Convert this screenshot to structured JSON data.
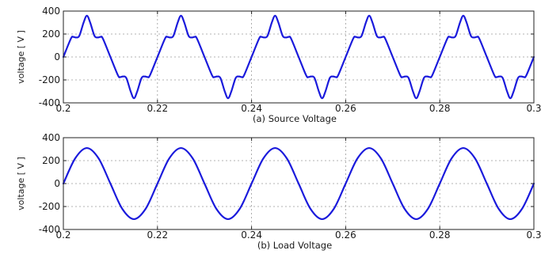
{
  "chart_data": [
    {
      "type": "line",
      "caption": "(a) Source Voltage",
      "ylabel": "voltage [ V ]",
      "xlabel": "",
      "xlim": [
        0.2,
        0.3
      ],
      "ylim": [
        -400,
        400
      ],
      "xticks": [
        0.2,
        0.22,
        0.24,
        0.26,
        0.28,
        0.3
      ],
      "xtick_labels": [
        "0.2",
        "0.22",
        "0.24",
        "0.26",
        "0.28",
        "0.3"
      ],
      "yticks": [
        -400,
        -200,
        0,
        200,
        400
      ],
      "ytick_labels": [
        "-400",
        "-200",
        "0",
        "200",
        "400"
      ],
      "grid": true,
      "series": [
        {
          "color": "#1a1adc",
          "x": [
            0.2,
            0.2016,
            0.2021,
            0.2027,
            0.2034,
            0.2043,
            0.205,
            0.2057,
            0.2066,
            0.2073,
            0.2079,
            0.2084,
            0.21,
            0.2116,
            0.2121,
            0.2127,
            0.2134,
            0.2143,
            0.215,
            0.2157,
            0.2166,
            0.2173,
            0.2179,
            0.2184,
            0.22,
            0.2216,
            0.2221,
            0.2227,
            0.2234,
            0.2243,
            0.225,
            0.2257,
            0.2266,
            0.2273,
            0.2279,
            0.2284,
            0.23,
            0.2316,
            0.2321,
            0.2327,
            0.2334,
            0.2343,
            0.235,
            0.2357,
            0.2366,
            0.2373,
            0.2379,
            0.2384,
            0.24,
            0.2416,
            0.2421,
            0.2427,
            0.2434,
            0.2443,
            0.245,
            0.2457,
            0.2466,
            0.2473,
            0.2479,
            0.2484,
            0.25,
            0.2516,
            0.2521,
            0.2527,
            0.2534,
            0.2543,
            0.255,
            0.2557,
            0.2566,
            0.2573,
            0.2579,
            0.2584,
            0.26,
            0.2616,
            0.2621,
            0.2627,
            0.2634,
            0.2643,
            0.265,
            0.2657,
            0.2666,
            0.2673,
            0.2679,
            0.2684,
            0.27,
            0.2716,
            0.2721,
            0.2727,
            0.2734,
            0.2743,
            0.275,
            0.2757,
            0.2766,
            0.2773,
            0.2779,
            0.2784,
            0.28,
            0.2816,
            0.2821,
            0.2827,
            0.2834,
            0.2843,
            0.285,
            0.2857,
            0.2866,
            0.2873,
            0.2879,
            0.2884,
            0.29,
            0.2916,
            0.2921,
            0.2927,
            0.2934,
            0.2943,
            0.295,
            0.2957,
            0.2966,
            0.2973,
            0.2979,
            0.2984,
            0.3
          ],
          "y": [
            0,
            160,
            175,
            170,
            185,
            300,
            360,
            300,
            185,
            170,
            175,
            160,
            0,
            -160,
            -175,
            -170,
            -185,
            -300,
            -360,
            -300,
            -185,
            -170,
            -175,
            -160,
            0,
            160,
            175,
            170,
            185,
            300,
            360,
            300,
            185,
            170,
            175,
            160,
            0,
            -160,
            -175,
            -170,
            -185,
            -300,
            -360,
            -300,
            -185,
            -170,
            -175,
            -160,
            0,
            160,
            175,
            170,
            185,
            300,
            360,
            300,
            185,
            170,
            175,
            160,
            0,
            -160,
            -175,
            -170,
            -185,
            -300,
            -360,
            -300,
            -185,
            -170,
            -175,
            -160,
            0,
            160,
            175,
            170,
            185,
            300,
            360,
            300,
            185,
            170,
            175,
            160,
            0,
            -160,
            -175,
            -170,
            -185,
            -300,
            -360,
            -300,
            -185,
            -170,
            -175,
            -160,
            0,
            160,
            175,
            170,
            185,
            300,
            360,
            300,
            185,
            170,
            175,
            160,
            0,
            -160,
            -175,
            -170,
            -185,
            -300,
            -360,
            -300,
            -185,
            -170,
            -175,
            -160,
            0
          ]
        }
      ]
    },
    {
      "type": "line",
      "caption": "(b) Load Voltage",
      "ylabel": "voltage [ V ]",
      "xlabel": "",
      "xlim": [
        0.2,
        0.3
      ],
      "ylim": [
        -400,
        400
      ],
      "xticks": [
        0.2,
        0.22,
        0.24,
        0.26,
        0.28,
        0.3
      ],
      "xtick_labels": [
        "0.2",
        "0.22",
        "0.24",
        "0.26",
        "0.28",
        "0.3"
      ],
      "yticks": [
        -400,
        -200,
        0,
        200,
        400
      ],
      "ytick_labels": [
        "-400",
        "-200",
        "0",
        "200",
        "400"
      ],
      "grid": true,
      "series": [
        {
          "color": "#1a1adc",
          "x": [
            0.2,
            0.2025,
            0.205,
            0.2075,
            0.21,
            0.2125,
            0.215,
            0.2175,
            0.22,
            0.2225,
            0.225,
            0.2275,
            0.23,
            0.2325,
            0.235,
            0.2375,
            0.24,
            0.2425,
            0.245,
            0.2475,
            0.25,
            0.2525,
            0.255,
            0.2575,
            0.26,
            0.2625,
            0.265,
            0.2675,
            0.27,
            0.2725,
            0.275,
            0.2775,
            0.28,
            0.2825,
            0.285,
            0.2875,
            0.29,
            0.2925,
            0.295,
            0.2975,
            0.3
          ],
          "y": [
            0,
            219,
            310,
            219,
            0,
            -219,
            -310,
            -219,
            0,
            219,
            310,
            219,
            0,
            -219,
            -310,
            -219,
            0,
            219,
            310,
            219,
            0,
            -219,
            -310,
            -219,
            0,
            219,
            310,
            219,
            0,
            -219,
            -310,
            -219,
            0,
            219,
            310,
            219,
            0,
            -219,
            -310,
            -219,
            0
          ]
        }
      ]
    }
  ]
}
